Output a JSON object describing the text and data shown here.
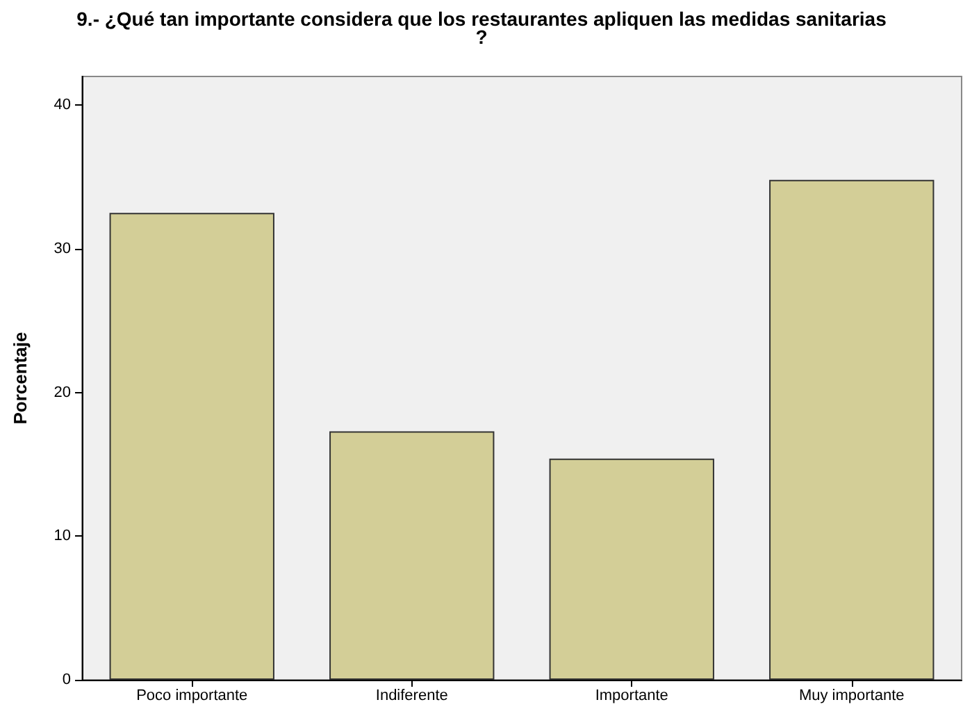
{
  "chart_data": {
    "type": "bar",
    "title": "9.- ¿Qué tan importante considera que los restaurantes apliquen las medidas sanitarias?",
    "ylabel": "Porcentaje",
    "categories": [
      "Poco importante",
      "Indiferente",
      "Importante",
      "Muy importante"
    ],
    "values": [
      32.5,
      17.3,
      15.4,
      34.8
    ],
    "color": "#d3ce97",
    "ylim": [
      0,
      42
    ],
    "yticks": [
      0,
      10,
      20,
      30,
      40
    ]
  }
}
